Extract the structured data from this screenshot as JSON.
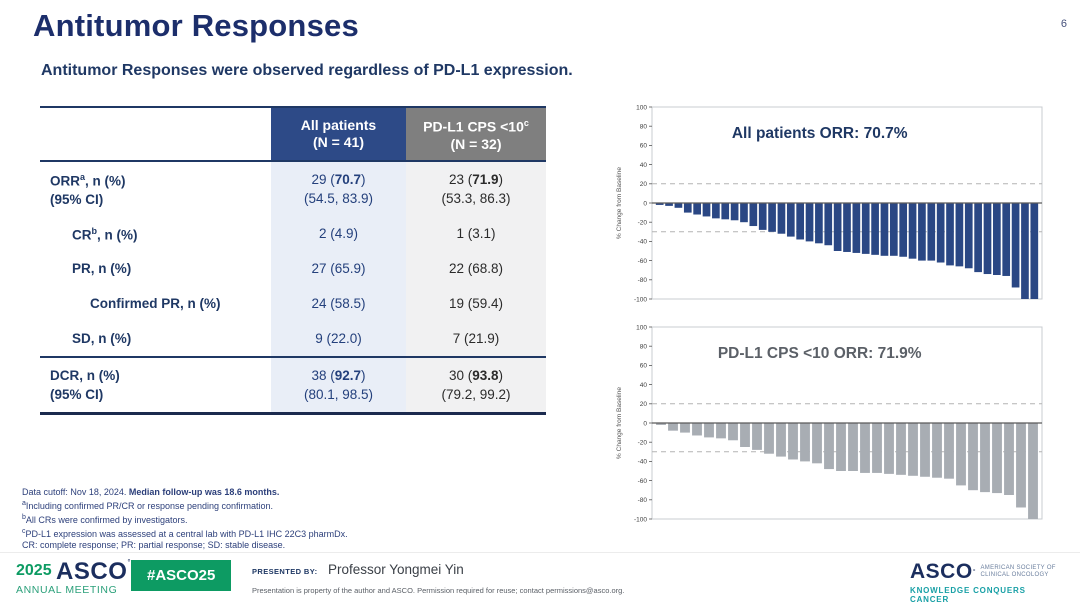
{
  "slide": {
    "title": "Antitumor Responses",
    "page_number": "6",
    "subtitle": "Antitumor Responses were observed regardless of PD-L1 expression."
  },
  "table": {
    "header": {
      "col_all": {
        "line1": "All patients",
        "line2": "(N = 41)"
      },
      "col_cps": {
        "line1": "PD-L1 CPS <10",
        "sup": "c",
        "line2": "(N = 32)"
      }
    },
    "rows": [
      {
        "label_pre": "ORR",
        "label_sup": "a",
        "label_post": ", n (%)",
        "sublabel": "(95% CI)",
        "indent": 0,
        "group_top": false,
        "all": {
          "n": "29",
          "pct": "70.7",
          "bold": true,
          "sub": "(54.5, 83.9)"
        },
        "cps": {
          "n": "23",
          "pct": "71.9",
          "bold": true,
          "sub": "(53.3, 86.3)"
        }
      },
      {
        "label_pre": "CR",
        "label_sup": "b",
        "label_post": ", n (%)",
        "sublabel": "",
        "indent": 1,
        "group_top": false,
        "all": {
          "n": "2",
          "pct": "4.9",
          "bold": false,
          "sub": ""
        },
        "cps": {
          "n": "1",
          "pct": "3.1",
          "bold": false,
          "sub": ""
        }
      },
      {
        "label_pre": "PR",
        "label_sup": "",
        "label_post": ", n (%)",
        "sublabel": "",
        "indent": 1,
        "group_top": false,
        "all": {
          "n": "27",
          "pct": "65.9",
          "bold": false,
          "sub": ""
        },
        "cps": {
          "n": "22",
          "pct": "68.8",
          "bold": false,
          "sub": ""
        }
      },
      {
        "label_pre": "Confirmed PR",
        "label_sup": "",
        "label_post": ", n (%)",
        "sublabel": "",
        "indent": 2,
        "group_top": false,
        "all": {
          "n": "24",
          "pct": "58.5",
          "bold": false,
          "sub": ""
        },
        "cps": {
          "n": "19",
          "pct": "59.4",
          "bold": false,
          "sub": ""
        }
      },
      {
        "label_pre": "SD",
        "label_sup": "",
        "label_post": ", n (%)",
        "sublabel": "",
        "indent": 1,
        "group_top": false,
        "all": {
          "n": "9",
          "pct": "22.0",
          "bold": false,
          "sub": ""
        },
        "cps": {
          "n": "7",
          "pct": "21.9",
          "bold": false,
          "sub": ""
        }
      },
      {
        "label_pre": "DCR",
        "label_sup": "",
        "label_post": ", n (%)",
        "sublabel": "(95% CI)",
        "indent": 0,
        "group_top": true,
        "all": {
          "n": "38",
          "pct": "92.7",
          "bold": true,
          "sub": "(80.1, 98.5)"
        },
        "cps": {
          "n": "30",
          "pct": "93.8",
          "bold": true,
          "sub": "(79.2, 99.2)"
        }
      }
    ]
  },
  "chart_data": [
    {
      "type": "bar",
      "subtype": "waterfall",
      "title": "All patients ORR: 70.7%",
      "title_color": "#1f3864",
      "xlabel": "",
      "ylabel": "% Change from Baseline",
      "ylim": [
        -100,
        100
      ],
      "yticks": [
        100,
        80,
        60,
        40,
        20,
        0,
        -20,
        -40,
        -60,
        -80,
        -100
      ],
      "reference_lines": [
        20,
        -30
      ],
      "grid": false,
      "legend": "none",
      "bar_color": "#2a4784",
      "values": [
        -2,
        -3,
        -5,
        -10,
        -12,
        -14,
        -16,
        -17,
        -18,
        -20,
        -24,
        -28,
        -30,
        -32,
        -35,
        -38,
        -40,
        -42,
        -44,
        -50,
        -51,
        -52,
        -53,
        -54,
        -55,
        -55,
        -56,
        -58,
        -60,
        -60,
        -62,
        -65,
        -66,
        -68,
        -72,
        -74,
        -75,
        -76,
        -88,
        -100,
        -100
      ]
    },
    {
      "type": "bar",
      "subtype": "waterfall",
      "title": "PD-L1 CPS <10 ORR: 71.9%",
      "title_color": "#5b6067",
      "xlabel": "",
      "ylabel": "% Change from Baseline",
      "ylim": [
        -100,
        100
      ],
      "yticks": [
        100,
        80,
        60,
        40,
        20,
        0,
        -20,
        -40,
        -60,
        -80,
        -100
      ],
      "reference_lines": [
        20,
        -30
      ],
      "grid": false,
      "legend": "none",
      "bar_color": "#a8adb3",
      "values": [
        -2,
        -8,
        -10,
        -13,
        -15,
        -16,
        -18,
        -25,
        -28,
        -32,
        -35,
        -38,
        -40,
        -42,
        -48,
        -50,
        -50,
        -52,
        -52,
        -53,
        -54,
        -55,
        -56,
        -57,
        -58,
        -65,
        -70,
        -72,
        -73,
        -75,
        -88,
        -100
      ]
    }
  ],
  "footnotes": {
    "line1_normal": "Data cutoff: Nov 18, 2024. ",
    "line1_bold": "Median follow-up was 18.6 months.",
    "items": [
      {
        "sup": "a",
        "text": "Including confirmed PR/CR or response pending confirmation."
      },
      {
        "sup": "b",
        "text": "All CRs were confirmed by investigators."
      },
      {
        "sup": "c",
        "text": "PD-L1 expression was assessed at a central lab with PD-L1 IHC 22C3 pharmDx."
      },
      {
        "sup": "",
        "text": "CR: complete response; PR: partial response; SD: stable disease."
      }
    ]
  },
  "footer": {
    "logo_year": "2025",
    "logo_asco": "ASCO",
    "logo_meeting": "ANNUAL MEETING",
    "hashtag": "#ASCO25",
    "presented_by_label": "PRESENTED BY:",
    "presenter": "Professor Yongmei Yin",
    "disclaimer": "Presentation is property of the author and ASCO. Permission required for reuse; contact permissions@asco.org.",
    "right_logo": {
      "asco": "ASCO",
      "society_line1": "AMERICAN SOCIETY OF",
      "society_line2": "CLINICAL ONCOLOGY",
      "tagline": "KNOWLEDGE CONQUERS CANCER"
    }
  },
  "colors": {
    "navy_text": "#1f3864",
    "header_blue": "#2d4a87",
    "header_gray": "#7f7f7f",
    "col_all_bg": "#e9eef7",
    "col_cps_bg": "#f1f1f2",
    "bar_navy": "#2a4784",
    "bar_gray": "#a8adb3",
    "green": "#0d9b63",
    "teal": "#18a0a6"
  }
}
